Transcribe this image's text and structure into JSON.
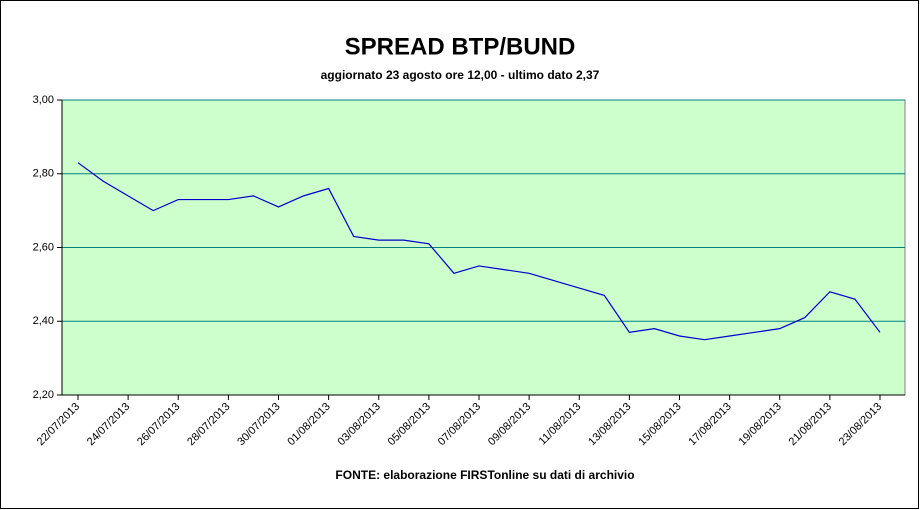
{
  "chart_data": {
    "type": "line",
    "title": "SPREAD BTP/BUND",
    "subtitle": "aggiornato 23 agosto ore 12,00 - ultimo dato 2,37",
    "source": "FONTE: elaborazione FIRSTonline su dati di archivio",
    "categories": [
      "22/07/2013",
      null,
      "24/07/2013",
      null,
      "26/07/2013",
      null,
      "28/07/2013",
      null,
      "30/07/2013",
      null,
      "01/08/2013",
      null,
      "03/08/2013",
      null,
      "05/08/2013",
      null,
      "07/08/2013",
      null,
      "09/08/2013",
      null,
      "11/08/2013",
      null,
      "13/08/2013",
      null,
      "15/08/2013",
      null,
      "17/08/2013",
      null,
      "19/08/2013",
      null,
      "21/08/2013",
      null,
      "23/08/2013"
    ],
    "series": [
      {
        "name": "Spread",
        "color": "#0000cc",
        "values": [
          2.83,
          2.78,
          2.74,
          2.7,
          2.73,
          2.73,
          2.73,
          2.74,
          2.71,
          2.74,
          2.76,
          2.63,
          2.62,
          2.62,
          2.61,
          2.53,
          2.55,
          2.54,
          2.53,
          2.51,
          2.49,
          2.47,
          2.37,
          2.38,
          2.36,
          2.35,
          2.36,
          2.37,
          2.38,
          2.41,
          2.48,
          2.46,
          2.37
        ]
      }
    ],
    "ylim": [
      2.2,
      3.0
    ],
    "yticks": [
      {
        "value": 2.2,
        "label": "2,20"
      },
      {
        "value": 2.4,
        "label": "2,40"
      },
      {
        "value": 2.6,
        "label": "2,60"
      },
      {
        "value": 2.8,
        "label": "2,80"
      },
      {
        "value": 3.0,
        "label": "3,00"
      }
    ],
    "grid": true
  }
}
